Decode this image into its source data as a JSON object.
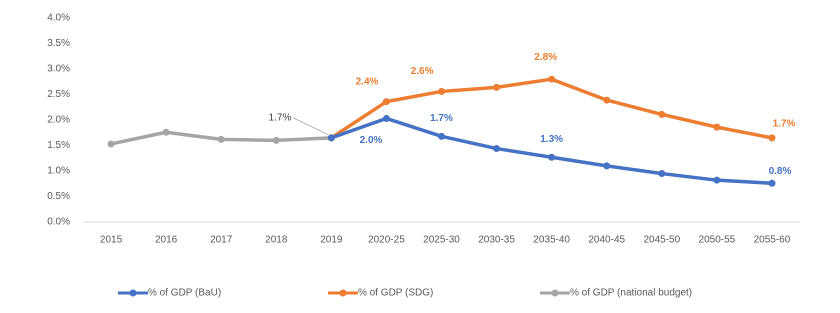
{
  "chart_data": {
    "type": "line",
    "categories": [
      "2015",
      "2016",
      "2017",
      "2018",
      "2019",
      "2020-25",
      "2025-30",
      "2030-35",
      "2035-40",
      "2040-45",
      "2045-50",
      "2050-55",
      "2055-60"
    ],
    "series": [
      {
        "name": "% of GDP (BaU)",
        "color": "#4472c4",
        "values": [
          null,
          null,
          null,
          null,
          1.65,
          2.03,
          1.68,
          1.44,
          1.27,
          1.1,
          0.95,
          0.82,
          0.76
        ],
        "value_labels": [
          null,
          null,
          null,
          null,
          null,
          "2.0%",
          "1.7%",
          null,
          "1.3%",
          null,
          null,
          null,
          "0.8%"
        ]
      },
      {
        "name": "% of GDP (SDG)",
        "color": "#ed7d31",
        "values": [
          null,
          null,
          null,
          null,
          1.65,
          2.36,
          2.56,
          2.64,
          2.8,
          2.39,
          2.11,
          1.86,
          1.65
        ],
        "value_labels": [
          null,
          null,
          null,
          null,
          null,
          "2.4%",
          "2.6%",
          null,
          "2.8%",
          null,
          null,
          null,
          "1.7%"
        ]
      },
      {
        "name": "% of GDP (national budget)",
        "color": "#a5a5a5",
        "values": [
          1.53,
          1.76,
          1.62,
          1.6,
          1.65,
          null,
          null,
          null,
          null,
          null,
          null,
          null,
          null
        ],
        "value_labels": [
          null,
          null,
          null,
          null,
          "1.7%",
          null,
          null,
          null,
          null,
          null,
          null,
          null,
          null
        ]
      }
    ],
    "ylim": [
      0,
      4
    ],
    "yticks": [
      {
        "value": 0,
        "label": "0.0%"
      },
      {
        "value": 0.5,
        "label": "0.5%"
      },
      {
        "value": 1,
        "label": "1.0%"
      },
      {
        "value": 1.5,
        "label": "1.5%"
      },
      {
        "value": 2,
        "label": "2.0%"
      },
      {
        "value": 2.5,
        "label": "2.5%"
      },
      {
        "value": 3,
        "label": "3.0%"
      },
      {
        "value": 3.5,
        "label": "3.5%"
      },
      {
        "value": 4,
        "label": "4.0%"
      }
    ],
    "grid": false,
    "legend": "bottom"
  }
}
